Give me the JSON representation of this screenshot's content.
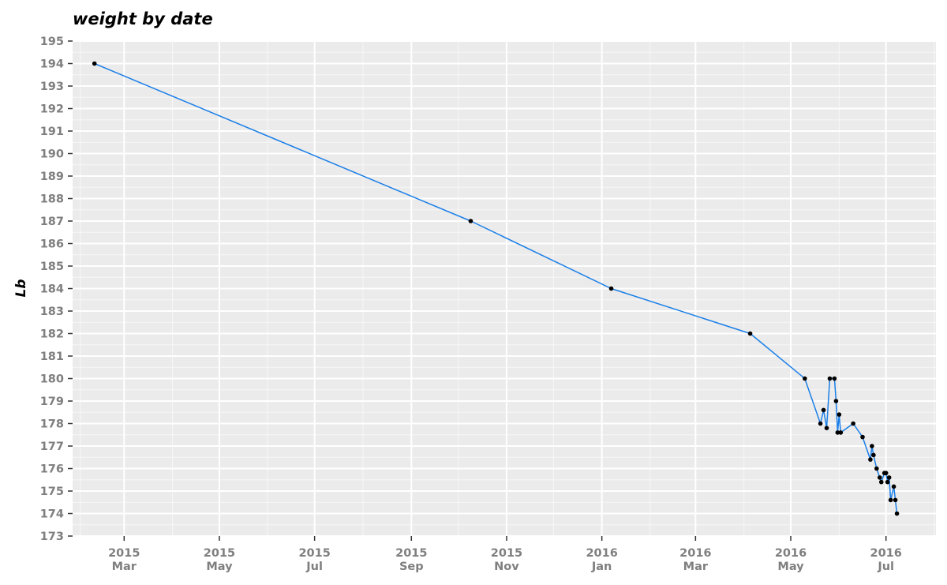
{
  "chart_data": {
    "type": "line",
    "title": "weight by date",
    "xlabel": "",
    "ylabel": "Lb",
    "ylim": [
      173,
      195
    ],
    "y_ticks": [
      173,
      174,
      175,
      176,
      177,
      178,
      179,
      180,
      181,
      182,
      183,
      184,
      185,
      186,
      187,
      188,
      189,
      190,
      191,
      192,
      193,
      194,
      195
    ],
    "x_range": [
      "2015-01-27",
      "2016-08-02"
    ],
    "x_ticks": [
      {
        "date": "2015-03-01",
        "year": "2015",
        "month": "Mar"
      },
      {
        "date": "2015-05-01",
        "year": "2015",
        "month": "May"
      },
      {
        "date": "2015-07-01",
        "year": "2015",
        "month": "Jul"
      },
      {
        "date": "2015-09-01",
        "year": "2015",
        "month": "Sep"
      },
      {
        "date": "2015-11-01",
        "year": "2015",
        "month": "Nov"
      },
      {
        "date": "2016-01-01",
        "year": "2016",
        "month": "Jan"
      },
      {
        "date": "2016-03-01",
        "year": "2016",
        "month": "Mar"
      },
      {
        "date": "2016-05-01",
        "year": "2016",
        "month": "May"
      },
      {
        "date": "2016-07-01",
        "year": "2016",
        "month": "Jul"
      }
    ],
    "x_minor_ticks": [
      "2015-02-01",
      "2015-04-01",
      "2015-06-01",
      "2015-08-01",
      "2015-10-01",
      "2015-12-01",
      "2016-02-01",
      "2016-04-01",
      "2016-06-01",
      "2016-08-01"
    ],
    "grid": true,
    "line_color": "#1a7fe8",
    "point_color": "#000000",
    "panel_color": "#ebebeb",
    "points": [
      {
        "x": "2015-02-10",
        "y": 194.0
      },
      {
        "x": "2015-10-09",
        "y": 187.0
      },
      {
        "x": "2016-01-07",
        "y": 184.0
      },
      {
        "x": "2016-04-05",
        "y": 182.0
      },
      {
        "x": "2016-05-10",
        "y": 180.0
      },
      {
        "x": "2016-05-20",
        "y": 178.0
      },
      {
        "x": "2016-05-22",
        "y": 178.6
      },
      {
        "x": "2016-05-24",
        "y": 177.8
      },
      {
        "x": "2016-05-26",
        "y": 180.0
      },
      {
        "x": "2016-05-29",
        "y": 180.0
      },
      {
        "x": "2016-05-30",
        "y": 179.0
      },
      {
        "x": "2016-05-31",
        "y": 177.6
      },
      {
        "x": "2016-06-01",
        "y": 178.4
      },
      {
        "x": "2016-06-02",
        "y": 177.6
      },
      {
        "x": "2016-06-10",
        "y": 178.0
      },
      {
        "x": "2016-06-16",
        "y": 177.4
      },
      {
        "x": "2016-06-21",
        "y": 176.4
      },
      {
        "x": "2016-06-22",
        "y": 177.0
      },
      {
        "x": "2016-06-23",
        "y": 176.6
      },
      {
        "x": "2016-06-25",
        "y": 176.0
      },
      {
        "x": "2016-06-27",
        "y": 175.6
      },
      {
        "x": "2016-06-28",
        "y": 175.4
      },
      {
        "x": "2016-06-30",
        "y": 175.8
      },
      {
        "x": "2016-07-01",
        "y": 175.8
      },
      {
        "x": "2016-07-02",
        "y": 175.4
      },
      {
        "x": "2016-07-03",
        "y": 175.6
      },
      {
        "x": "2016-07-04",
        "y": 174.6
      },
      {
        "x": "2016-07-06",
        "y": 175.2
      },
      {
        "x": "2016-07-07",
        "y": 174.6
      },
      {
        "x": "2016-07-08",
        "y": 174.0
      }
    ]
  }
}
